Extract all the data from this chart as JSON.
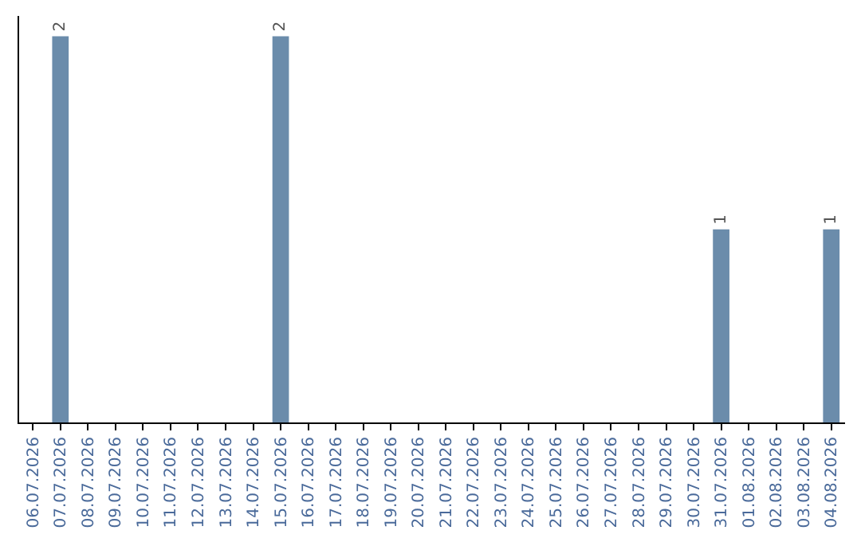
{
  "chart_data": {
    "type": "bar",
    "categories": [
      "06.07.2026",
      "07.07.2026",
      "08.07.2026",
      "09.07.2026",
      "10.07.2026",
      "11.07.2026",
      "12.07.2026",
      "13.07.2026",
      "14.07.2026",
      "15.07.2026",
      "16.07.2026",
      "17.07.2026",
      "18.07.2026",
      "19.07.2026",
      "20.07.2026",
      "21.07.2026",
      "22.07.2026",
      "23.07.2026",
      "24.07.2026",
      "25.07.2026",
      "26.07.2026",
      "27.07.2026",
      "28.07.2026",
      "29.07.2026",
      "30.07.2026",
      "31.07.2026",
      "01.08.2026",
      "02.08.2026",
      "03.08.2026",
      "04.08.2026"
    ],
    "values": [
      0,
      2,
      0,
      0,
      0,
      0,
      0,
      0,
      0,
      2,
      0,
      0,
      0,
      0,
      0,
      0,
      0,
      0,
      0,
      0,
      0,
      0,
      0,
      0,
      0,
      1,
      0,
      0,
      0,
      1
    ],
    "value_labels": [
      null,
      "2",
      null,
      null,
      null,
      null,
      null,
      null,
      null,
      "2",
      null,
      null,
      null,
      null,
      null,
      null,
      null,
      null,
      null,
      null,
      null,
      null,
      null,
      null,
      null,
      "1",
      null,
      null,
      null,
      "1"
    ],
    "color": "#6b8cab",
    "grid": false,
    "tick_labels": "x"
  }
}
